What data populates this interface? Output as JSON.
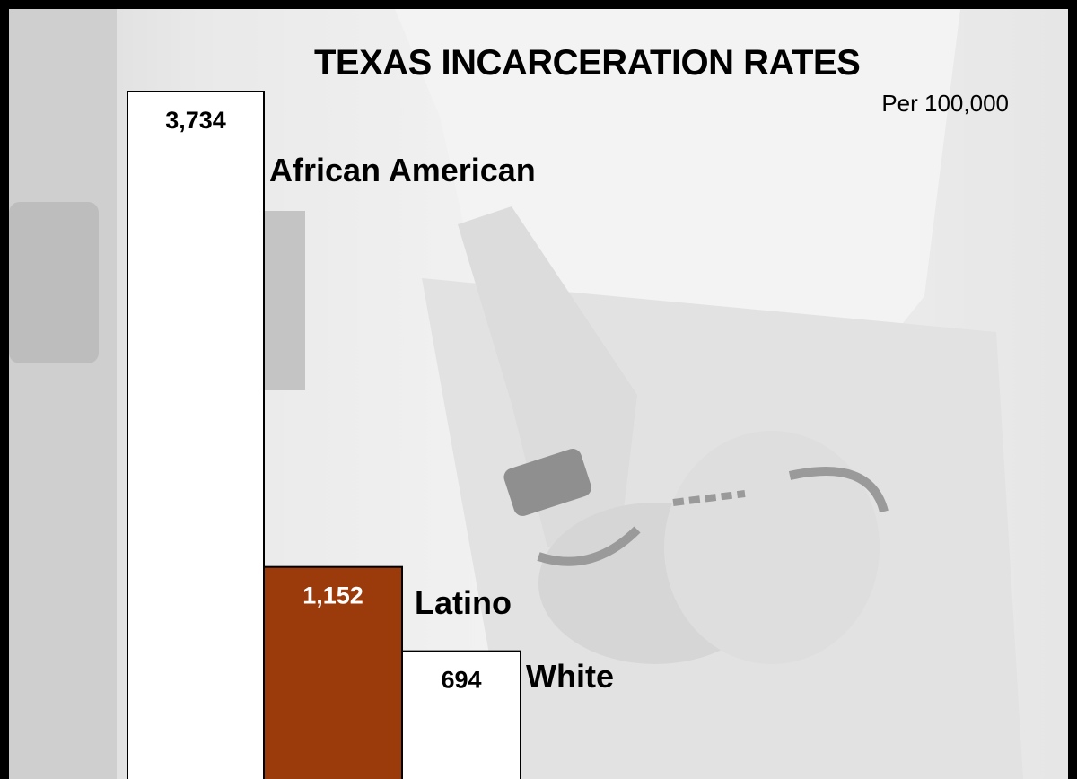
{
  "chart_data": {
    "type": "bar",
    "title": "TEXAS INCARCERATION RATES",
    "subtitle": "Per 100,000",
    "categories": [
      "African American",
      "Latino",
      "White"
    ],
    "values": [
      3734,
      1152,
      694
    ],
    "value_labels": [
      "3,734",
      "1,152",
      "694"
    ],
    "bar_colors": [
      "#ffffff",
      "#9b3a0a",
      "#ffffff"
    ],
    "value_label_colors": [
      "#000000",
      "#ffffff",
      "#000000"
    ],
    "ylim": [
      0,
      3734
    ],
    "grid": false,
    "legend": "none"
  },
  "colors": {
    "background": "#000000",
    "bar_outline": "#000000",
    "latino_bar": "#9b3a0a"
  },
  "background_image": "faded grayscale photo of handcuffed hands behind back"
}
